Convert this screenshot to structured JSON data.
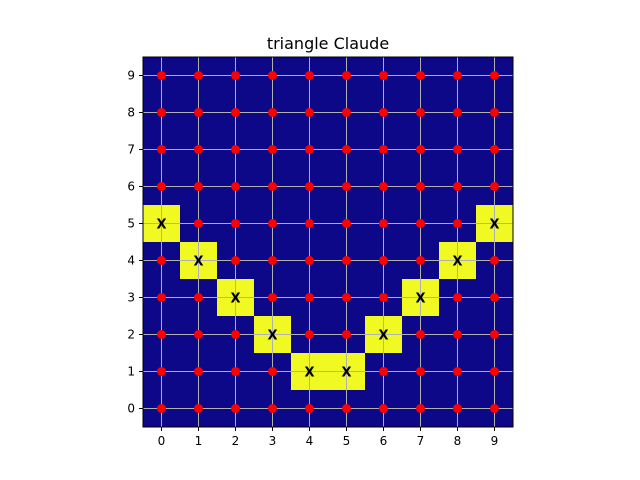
{
  "chart_data": {
    "type": "heatmap",
    "title": "triangle Claude",
    "xlabel": "",
    "ylabel": "",
    "x": [
      0,
      1,
      2,
      3,
      4,
      5,
      6,
      7,
      8,
      9
    ],
    "y": [
      0,
      1,
      2,
      3,
      4,
      5,
      6,
      7,
      8,
      9
    ],
    "xlim": [
      -0.5,
      9.5
    ],
    "ylim": [
      -0.5,
      9.5
    ],
    "grid": true,
    "background_color": "#0d0887",
    "highlight_color": "#f0f921",
    "point_color": "#ff0000",
    "grid_color": "#b0b0b0",
    "highlight_marker": "X",
    "highlighted_cells": [
      {
        "x": 0,
        "y": 5
      },
      {
        "x": 1,
        "y": 4
      },
      {
        "x": 2,
        "y": 3
      },
      {
        "x": 3,
        "y": 2
      },
      {
        "x": 4,
        "y": 1
      },
      {
        "x": 5,
        "y": 1
      },
      {
        "x": 6,
        "y": 2
      },
      {
        "x": 7,
        "y": 3
      },
      {
        "x": 8,
        "y": 4
      },
      {
        "x": 9,
        "y": 5
      }
    ]
  }
}
